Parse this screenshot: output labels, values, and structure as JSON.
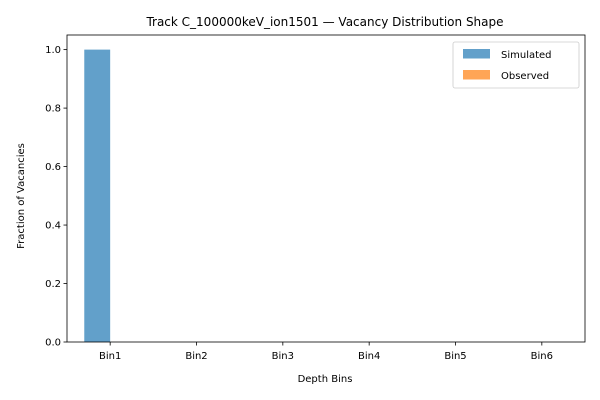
{
  "chart_data": {
    "type": "bar",
    "title": "Track C_100000keV_ion1501 — Vacancy Distribution Shape",
    "xlabel": "Depth Bins",
    "ylabel": "Fraction of Vacancies",
    "categories": [
      "Bin1",
      "Bin2",
      "Bin3",
      "Bin4",
      "Bin5",
      "Bin6"
    ],
    "ylim": [
      0,
      1.05
    ],
    "yticks": [
      0.0,
      0.2,
      0.4,
      0.6,
      0.8,
      1.0
    ],
    "ytick_labels": [
      "0.0",
      "0.2",
      "0.4",
      "0.6",
      "0.8",
      "1.0"
    ],
    "grid": false,
    "legend_position": "top-right",
    "series": [
      {
        "name": "Simulated",
        "values": [
          1.0,
          0,
          0,
          0,
          0,
          0
        ],
        "color": "#1f77b4",
        "alpha": 0.7
      },
      {
        "name": "Observed",
        "values": [
          0,
          0,
          0,
          0,
          0,
          0
        ],
        "color": "#ff7f0e",
        "alpha": 0.7
      }
    ]
  }
}
